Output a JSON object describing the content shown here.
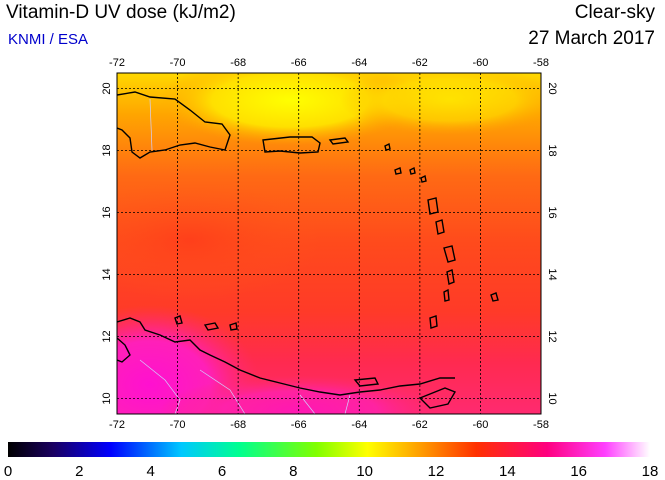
{
  "header": {
    "title": "Vitamin-D UV dose (kJ/m2)",
    "source": "KNMI / ESA",
    "sky_type": "Clear-sky",
    "date": "27 March 2017"
  },
  "map": {
    "lon_range": [
      -72,
      -58
    ],
    "lat_range": [
      9.5,
      20.5
    ],
    "lon_ticks": [
      "-72",
      "-70",
      "-68",
      "-66",
      "-64",
      "-62",
      "-60",
      "-58"
    ],
    "lat_ticks": [
      "10",
      "12",
      "14",
      "16",
      "18",
      "20"
    ]
  },
  "colorbar": {
    "labels": [
      "0",
      "2",
      "4",
      "6",
      "8",
      "10",
      "12",
      "14",
      "16",
      "18"
    ],
    "min": 0,
    "max": 18
  },
  "colors": {
    "high_dose": "#ff00c8",
    "mid_dose": "#ff3c1e",
    "low_dose": "#ffff00"
  }
}
